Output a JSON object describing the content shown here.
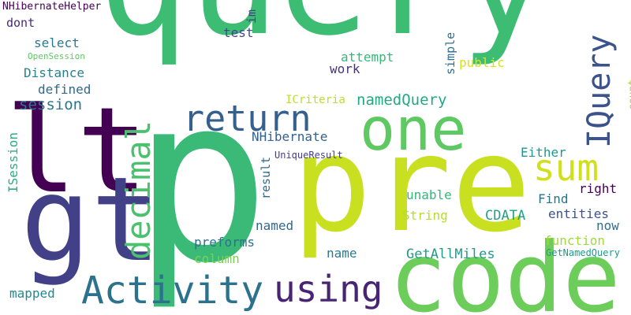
{
  "words": [
    {
      "text": "query",
      "color": "#3dbc74",
      "vertical": false
    },
    {
      "text": "p",
      "color": "#3aba76",
      "vertical": false
    },
    {
      "text": "pre",
      "color": "#c8e020",
      "vertical": false
    },
    {
      "text": "code",
      "color": "#6ccd5a",
      "vertical": false
    },
    {
      "text": "lt",
      "color": "#440154",
      "vertical": false
    },
    {
      "text": "gt",
      "color": "#424086",
      "vertical": false
    },
    {
      "text": "one",
      "color": "#5ec962",
      "vertical": false
    },
    {
      "text": "return",
      "color": "#355f8d",
      "vertical": false
    },
    {
      "text": "IQuery",
      "color": "#3b528b",
      "vertical": true
    },
    {
      "text": "sum",
      "color": "#d0e11c",
      "vertical": false
    },
    {
      "text": "decimal",
      "color": "#4ac16d",
      "vertical": true
    },
    {
      "text": "Activity",
      "color": "#2c728e",
      "vertical": false
    },
    {
      "text": "using",
      "color": "#482475",
      "vertical": false
    },
    {
      "text": "NHibernateHelper",
      "color": "#440154",
      "vertical": false
    },
    {
      "text": "dont",
      "color": "#482878",
      "vertical": false
    },
    {
      "text": "im",
      "color": "#414487",
      "vertical": true
    },
    {
      "text": "test",
      "color": "#3e4a89",
      "vertical": false
    },
    {
      "text": "select",
      "color": "#2a788e",
      "vertical": false
    },
    {
      "text": "OpenSession",
      "color": "#5ec962",
      "vertical": false
    },
    {
      "text": "attempt",
      "color": "#35b779",
      "vertical": false
    },
    {
      "text": "simple",
      "color": "#2f6c8e",
      "vertical": true
    },
    {
      "text": "public",
      "color": "#d8e219",
      "vertical": false
    },
    {
      "text": "Distance",
      "color": "#26828e",
      "vertical": false
    },
    {
      "text": "work",
      "color": "#46327e",
      "vertical": false
    },
    {
      "text": "count",
      "color": "#9fda3a",
      "vertical": true
    },
    {
      "text": "defined",
      "color": "#31688e",
      "vertical": false
    },
    {
      "text": "ICriteria",
      "color": "#bddf26",
      "vertical": false
    },
    {
      "text": "namedQuery",
      "color": "#22a884",
      "vertical": false
    },
    {
      "text": "session",
      "color": "#2a768e",
      "vertical": false
    },
    {
      "text": "ISession",
      "color": "#29af7f",
      "vertical": true
    },
    {
      "text": "NHibernate",
      "color": "#33638d",
      "vertical": false
    },
    {
      "text": "UniqueResult",
      "color": "#433e85",
      "vertical": false
    },
    {
      "text": "result",
      "color": "#31688e",
      "vertical": true
    },
    {
      "text": "Either",
      "color": "#1f988b",
      "vertical": false
    },
    {
      "text": "unable",
      "color": "#35b779",
      "vertical": false
    },
    {
      "text": "right",
      "color": "#440154",
      "vertical": false
    },
    {
      "text": "Find",
      "color": "#2c728e",
      "vertical": false
    },
    {
      "text": "String",
      "color": "#b5de2b",
      "vertical": false
    },
    {
      "text": "CDATA",
      "color": "#1fa187",
      "vertical": false
    },
    {
      "text": "entities",
      "color": "#3b528b",
      "vertical": false
    },
    {
      "text": "now",
      "color": "#2d708e",
      "vertical": false
    },
    {
      "text": "named",
      "color": "#30698e",
      "vertical": false
    },
    {
      "text": "preforms",
      "color": "#2c728e",
      "vertical": false
    },
    {
      "text": "function",
      "color": "#a2da37",
      "vertical": false
    },
    {
      "text": "column",
      "color": "#7ad151",
      "vertical": false
    },
    {
      "text": "name",
      "color": "#297b8e",
      "vertical": false
    },
    {
      "text": "GetAllMiles",
      "color": "#1e9b8a",
      "vertical": false
    },
    {
      "text": "GetNamedQuery",
      "color": "#1f9a8a",
      "vertical": false
    },
    {
      "text": "mapped",
      "color": "#23888e",
      "vertical": false
    }
  ]
}
